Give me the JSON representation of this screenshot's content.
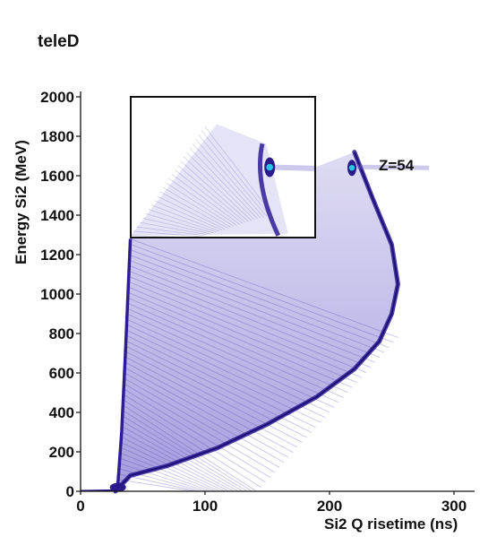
{
  "chart_data": {
    "type": "heatmap",
    "title": "teleD",
    "xlabel": "Si2 Q risetime (ns)",
    "ylabel": "Energy Si2 (MeV)",
    "xlim": [
      0,
      300
    ],
    "ylim": [
      0,
      2000
    ],
    "x_ticks": [
      0,
      100,
      200,
      300
    ],
    "x_tick_labels": [
      "0",
      "100",
      "200",
      "300"
    ],
    "y_ticks": [
      0,
      200,
      400,
      600,
      800,
      1000,
      1200,
      1400,
      1600,
      1800,
      2000
    ],
    "y_tick_labels": [
      "0",
      "200",
      "400",
      "600",
      "800",
      "1000",
      "1200",
      "1400",
      "1600",
      "1800",
      "2000"
    ],
    "annotation": "Z=54",
    "grid": false,
    "colors": {
      "density_low": "#d8d2f2",
      "density_high": "#2a1a8c",
      "peak": "#27c4e8"
    },
    "inset": {
      "x_range": [
        40,
        190
      ],
      "y_range": [
        1280,
        2000
      ]
    },
    "envelope": {
      "description_points_upper_edge_x": [
        28,
        40,
        70,
        110,
        150,
        190,
        220,
        240,
        250,
        255,
        250,
        235,
        220
      ],
      "description_points_upper_edge_y": [
        0,
        80,
        130,
        220,
        340,
        480,
        620,
        760,
        900,
        1050,
        1250,
        1480,
        1720
      ]
    },
    "z54_peak": {
      "x": 218,
      "y": 1640
    },
    "z54_peak_inset": {
      "x": 153,
      "y": 1640
    }
  }
}
